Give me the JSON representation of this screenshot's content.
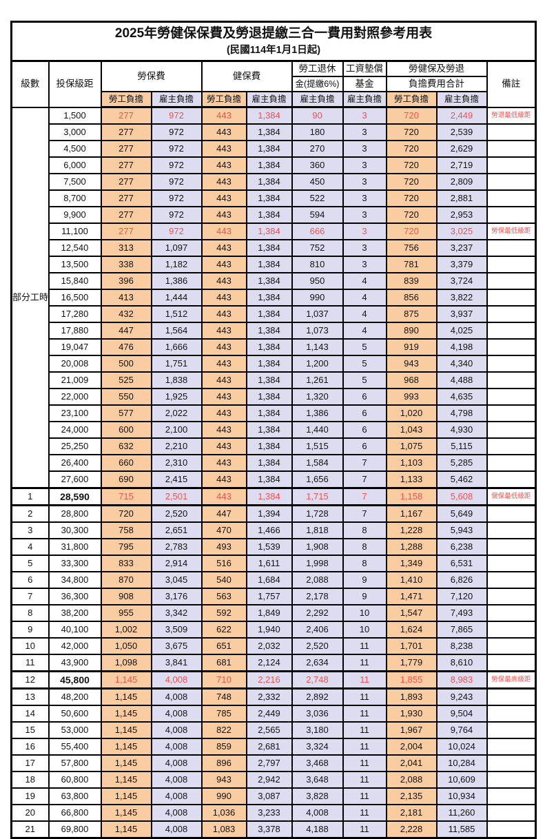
{
  "title": "2025年勞健保保費及勞退提繳三合一費用對照參考用表",
  "subtitle": "(民國114年1月1日起)",
  "colors": {
    "employee_bg": "#F9CCA2",
    "employer_bg": "#DEDCF0",
    "highlight": "#F0534F",
    "border": "#000000"
  },
  "header": {
    "level": "級數",
    "bracket": "投保級距",
    "labor_ins": "勞保費",
    "health_ins": "健保費",
    "pension_l1": "勞工退休",
    "pension_l2": "金(提繳6%)",
    "fund_l1": "工資墊償",
    "fund_l2": "基金",
    "total_l1": "勞健保及勞退",
    "total_l2": "負擔費用合計",
    "remark": "備註",
    "employee_label": "勞工負擔",
    "employer_label": "雇主負擔"
  },
  "group": {
    "label": "部分工時",
    "span": 23
  },
  "rows": [
    {
      "level": "",
      "bracket": "1,500",
      "li_emp": "277",
      "li_er": "972",
      "hi_emp": "443",
      "hi_er": "1,384",
      "pension": "90",
      "fund": "3",
      "tot_emp": "720",
      "tot_er": "2,449",
      "remark": "勞退最低級距",
      "hl": true,
      "bold": false
    },
    {
      "level": "",
      "bracket": "3,000",
      "li_emp": "277",
      "li_er": "972",
      "hi_emp": "443",
      "hi_er": "1,384",
      "pension": "180",
      "fund": "3",
      "tot_emp": "720",
      "tot_er": "2,539",
      "remark": "",
      "hl": false,
      "bold": false
    },
    {
      "level": "",
      "bracket": "4,500",
      "li_emp": "277",
      "li_er": "972",
      "hi_emp": "443",
      "hi_er": "1,384",
      "pension": "270",
      "fund": "3",
      "tot_emp": "720",
      "tot_er": "2,629",
      "remark": "",
      "hl": false,
      "bold": false
    },
    {
      "level": "",
      "bracket": "6,000",
      "li_emp": "277",
      "li_er": "972",
      "hi_emp": "443",
      "hi_er": "1,384",
      "pension": "360",
      "fund": "3",
      "tot_emp": "720",
      "tot_er": "2,719",
      "remark": "",
      "hl": false,
      "bold": false
    },
    {
      "level": "",
      "bracket": "7,500",
      "li_emp": "277",
      "li_er": "972",
      "hi_emp": "443",
      "hi_er": "1,384",
      "pension": "450",
      "fund": "3",
      "tot_emp": "720",
      "tot_er": "2,809",
      "remark": "",
      "hl": false,
      "bold": false
    },
    {
      "level": "",
      "bracket": "8,700",
      "li_emp": "277",
      "li_er": "972",
      "hi_emp": "443",
      "hi_er": "1,384",
      "pension": "522",
      "fund": "3",
      "tot_emp": "720",
      "tot_er": "2,881",
      "remark": "",
      "hl": false,
      "bold": false
    },
    {
      "level": "",
      "bracket": "9,900",
      "li_emp": "277",
      "li_er": "972",
      "hi_emp": "443",
      "hi_er": "1,384",
      "pension": "594",
      "fund": "3",
      "tot_emp": "720",
      "tot_er": "2,953",
      "remark": "",
      "hl": false,
      "bold": false
    },
    {
      "level": "",
      "bracket": "11,100",
      "li_emp": "277",
      "li_er": "972",
      "hi_emp": "443",
      "hi_er": "1,384",
      "pension": "666",
      "fund": "3",
      "tot_emp": "720",
      "tot_er": "3,025",
      "remark": "勞保最低級距",
      "hl": true,
      "bold": false
    },
    {
      "level": "",
      "bracket": "12,540",
      "li_emp": "313",
      "li_er": "1,097",
      "hi_emp": "443",
      "hi_er": "1,384",
      "pension": "752",
      "fund": "3",
      "tot_emp": "756",
      "tot_er": "3,237",
      "remark": "",
      "hl": false,
      "bold": false
    },
    {
      "level": "",
      "bracket": "13,500",
      "li_emp": "338",
      "li_er": "1,182",
      "hi_emp": "443",
      "hi_er": "1,384",
      "pension": "810",
      "fund": "3",
      "tot_emp": "781",
      "tot_er": "3,379",
      "remark": "",
      "hl": false,
      "bold": false
    },
    {
      "level": "",
      "bracket": "15,840",
      "li_emp": "396",
      "li_er": "1,386",
      "hi_emp": "443",
      "hi_er": "1,384",
      "pension": "950",
      "fund": "4",
      "tot_emp": "839",
      "tot_er": "3,724",
      "remark": "",
      "hl": false,
      "bold": false
    },
    {
      "level": "",
      "bracket": "16,500",
      "li_emp": "413",
      "li_er": "1,444",
      "hi_emp": "443",
      "hi_er": "1,384",
      "pension": "990",
      "fund": "4",
      "tot_emp": "856",
      "tot_er": "3,822",
      "remark": "",
      "hl": false,
      "bold": false
    },
    {
      "level": "",
      "bracket": "17,280",
      "li_emp": "432",
      "li_er": "1,512",
      "hi_emp": "443",
      "hi_er": "1,384",
      "pension": "1,037",
      "fund": "4",
      "tot_emp": "875",
      "tot_er": "3,937",
      "remark": "",
      "hl": false,
      "bold": false
    },
    {
      "level": "",
      "bracket": "17,880",
      "li_emp": "447",
      "li_er": "1,564",
      "hi_emp": "443",
      "hi_er": "1,384",
      "pension": "1,073",
      "fund": "4",
      "tot_emp": "890",
      "tot_er": "4,025",
      "remark": "",
      "hl": false,
      "bold": false
    },
    {
      "level": "",
      "bracket": "19,047",
      "li_emp": "476",
      "li_er": "1,666",
      "hi_emp": "443",
      "hi_er": "1,384",
      "pension": "1,143",
      "fund": "5",
      "tot_emp": "919",
      "tot_er": "4,198",
      "remark": "",
      "hl": false,
      "bold": false
    },
    {
      "level": "",
      "bracket": "20,008",
      "li_emp": "500",
      "li_er": "1,751",
      "hi_emp": "443",
      "hi_er": "1,384",
      "pension": "1,200",
      "fund": "5",
      "tot_emp": "943",
      "tot_er": "4,340",
      "remark": "",
      "hl": false,
      "bold": false
    },
    {
      "level": "",
      "bracket": "21,009",
      "li_emp": "525",
      "li_er": "1,838",
      "hi_emp": "443",
      "hi_er": "1,384",
      "pension": "1,261",
      "fund": "5",
      "tot_emp": "968",
      "tot_er": "4,488",
      "remark": "",
      "hl": false,
      "bold": false
    },
    {
      "level": "",
      "bracket": "22,000",
      "li_emp": "550",
      "li_er": "1,925",
      "hi_emp": "443",
      "hi_er": "1,384",
      "pension": "1,320",
      "fund": "6",
      "tot_emp": "993",
      "tot_er": "4,635",
      "remark": "",
      "hl": false,
      "bold": false
    },
    {
      "level": "",
      "bracket": "23,100",
      "li_emp": "577",
      "li_er": "2,022",
      "hi_emp": "443",
      "hi_er": "1,384",
      "pension": "1,386",
      "fund": "6",
      "tot_emp": "1,020",
      "tot_er": "4,798",
      "remark": "",
      "hl": false,
      "bold": false
    },
    {
      "level": "",
      "bracket": "24,000",
      "li_emp": "600",
      "li_er": "2,100",
      "hi_emp": "443",
      "hi_er": "1,384",
      "pension": "1,440",
      "fund": "6",
      "tot_emp": "1,043",
      "tot_er": "4,930",
      "remark": "",
      "hl": false,
      "bold": false
    },
    {
      "level": "",
      "bracket": "25,250",
      "li_emp": "632",
      "li_er": "2,210",
      "hi_emp": "443",
      "hi_er": "1,384",
      "pension": "1,515",
      "fund": "6",
      "tot_emp": "1,075",
      "tot_er": "5,115",
      "remark": "",
      "hl": false,
      "bold": false
    },
    {
      "level": "",
      "bracket": "26,400",
      "li_emp": "660",
      "li_er": "2,310",
      "hi_emp": "443",
      "hi_er": "1,384",
      "pension": "1,584",
      "fund": "7",
      "tot_emp": "1,103",
      "tot_er": "5,285",
      "remark": "",
      "hl": false,
      "bold": false
    },
    {
      "level": "",
      "bracket": "27,600",
      "li_emp": "690",
      "li_er": "2,415",
      "hi_emp": "443",
      "hi_er": "1,384",
      "pension": "1,656",
      "fund": "7",
      "tot_emp": "1,133",
      "tot_er": "5,462",
      "remark": "",
      "hl": false,
      "bold": false
    },
    {
      "level": "1",
      "bracket": "28,590",
      "li_emp": "715",
      "li_er": "2,501",
      "hi_emp": "443",
      "hi_er": "1,384",
      "pension": "1,715",
      "fund": "7",
      "tot_emp": "1,158",
      "tot_er": "5,608",
      "remark": "健保最低級距",
      "hl": true,
      "bold": true
    },
    {
      "level": "2",
      "bracket": "28,800",
      "li_emp": "720",
      "li_er": "2,520",
      "hi_emp": "447",
      "hi_er": "1,394",
      "pension": "1,728",
      "fund": "7",
      "tot_emp": "1,167",
      "tot_er": "5,649",
      "remark": "",
      "hl": false,
      "bold": false
    },
    {
      "level": "3",
      "bracket": "30,300",
      "li_emp": "758",
      "li_er": "2,651",
      "hi_emp": "470",
      "hi_er": "1,466",
      "pension": "1,818",
      "fund": "8",
      "tot_emp": "1,228",
      "tot_er": "5,943",
      "remark": "",
      "hl": false,
      "bold": false
    },
    {
      "level": "4",
      "bracket": "31,800",
      "li_emp": "795",
      "li_er": "2,783",
      "hi_emp": "493",
      "hi_er": "1,539",
      "pension": "1,908",
      "fund": "8",
      "tot_emp": "1,288",
      "tot_er": "6,238",
      "remark": "",
      "hl": false,
      "bold": false
    },
    {
      "level": "5",
      "bracket": "33,300",
      "li_emp": "833",
      "li_er": "2,914",
      "hi_emp": "516",
      "hi_er": "1,611",
      "pension": "1,998",
      "fund": "8",
      "tot_emp": "1,349",
      "tot_er": "6,531",
      "remark": "",
      "hl": false,
      "bold": false
    },
    {
      "level": "6",
      "bracket": "34,800",
      "li_emp": "870",
      "li_er": "3,045",
      "hi_emp": "540",
      "hi_er": "1,684",
      "pension": "2,088",
      "fund": "9",
      "tot_emp": "1,410",
      "tot_er": "6,826",
      "remark": "",
      "hl": false,
      "bold": false
    },
    {
      "level": "7",
      "bracket": "36,300",
      "li_emp": "908",
      "li_er": "3,176",
      "hi_emp": "563",
      "hi_er": "1,757",
      "pension": "2,178",
      "fund": "9",
      "tot_emp": "1,471",
      "tot_er": "7,120",
      "remark": "",
      "hl": false,
      "bold": false
    },
    {
      "level": "8",
      "bracket": "38,200",
      "li_emp": "955",
      "li_er": "3,342",
      "hi_emp": "592",
      "hi_er": "1,849",
      "pension": "2,292",
      "fund": "10",
      "tot_emp": "1,547",
      "tot_er": "7,493",
      "remark": "",
      "hl": false,
      "bold": false
    },
    {
      "level": "9",
      "bracket": "40,100",
      "li_emp": "1,002",
      "li_er": "3,509",
      "hi_emp": "622",
      "hi_er": "1,940",
      "pension": "2,406",
      "fund": "10",
      "tot_emp": "1,624",
      "tot_er": "7,865",
      "remark": "",
      "hl": false,
      "bold": false
    },
    {
      "level": "10",
      "bracket": "42,000",
      "li_emp": "1,050",
      "li_er": "3,675",
      "hi_emp": "651",
      "hi_er": "2,032",
      "pension": "2,520",
      "fund": "11",
      "tot_emp": "1,701",
      "tot_er": "8,238",
      "remark": "",
      "hl": false,
      "bold": false
    },
    {
      "level": "11",
      "bracket": "43,900",
      "li_emp": "1,098",
      "li_er": "3,841",
      "hi_emp": "681",
      "hi_er": "2,124",
      "pension": "2,634",
      "fund": "11",
      "tot_emp": "1,779",
      "tot_er": "8,610",
      "remark": "",
      "hl": false,
      "bold": false
    },
    {
      "level": "12",
      "bracket": "45,800",
      "li_emp": "1,145",
      "li_er": "4,008",
      "hi_emp": "710",
      "hi_er": "2,216",
      "pension": "2,748",
      "fund": "11",
      "tot_emp": "1,855",
      "tot_er": "8,983",
      "remark": "勞保最高級距",
      "hl": true,
      "bold": true
    },
    {
      "level": "13",
      "bracket": "48,200",
      "li_emp": "1,145",
      "li_er": "4,008",
      "hi_emp": "748",
      "hi_er": "2,332",
      "pension": "2,892",
      "fund": "11",
      "tot_emp": "1,893",
      "tot_er": "9,243",
      "remark": "",
      "hl": false,
      "bold": false
    },
    {
      "level": "14",
      "bracket": "50,600",
      "li_emp": "1,145",
      "li_er": "4,008",
      "hi_emp": "785",
      "hi_er": "2,449",
      "pension": "3,036",
      "fund": "11",
      "tot_emp": "1,930",
      "tot_er": "9,504",
      "remark": "",
      "hl": false,
      "bold": false
    },
    {
      "level": "15",
      "bracket": "53,000",
      "li_emp": "1,145",
      "li_er": "4,008",
      "hi_emp": "822",
      "hi_er": "2,565",
      "pension": "3,180",
      "fund": "11",
      "tot_emp": "1,967",
      "tot_er": "9,764",
      "remark": "",
      "hl": false,
      "bold": false
    },
    {
      "level": "16",
      "bracket": "55,400",
      "li_emp": "1,145",
      "li_er": "4,008",
      "hi_emp": "859",
      "hi_er": "2,681",
      "pension": "3,324",
      "fund": "11",
      "tot_emp": "2,004",
      "tot_er": "10,024",
      "remark": "",
      "hl": false,
      "bold": false
    },
    {
      "level": "17",
      "bracket": "57,800",
      "li_emp": "1,145",
      "li_er": "4,008",
      "hi_emp": "896",
      "hi_er": "2,797",
      "pension": "3,468",
      "fund": "11",
      "tot_emp": "2,041",
      "tot_er": "10,284",
      "remark": "",
      "hl": false,
      "bold": false
    },
    {
      "level": "18",
      "bracket": "60,800",
      "li_emp": "1,145",
      "li_er": "4,008",
      "hi_emp": "943",
      "hi_er": "2,942",
      "pension": "3,648",
      "fund": "11",
      "tot_emp": "2,088",
      "tot_er": "10,609",
      "remark": "",
      "hl": false,
      "bold": false
    },
    {
      "level": "19",
      "bracket": "63,800",
      "li_emp": "1,145",
      "li_er": "4,008",
      "hi_emp": "990",
      "hi_er": "3,087",
      "pension": "3,828",
      "fund": "11",
      "tot_emp": "2,135",
      "tot_er": "10,934",
      "remark": "",
      "hl": false,
      "bold": false
    },
    {
      "level": "20",
      "bracket": "66,800",
      "li_emp": "1,145",
      "li_er": "4,008",
      "hi_emp": "1,036",
      "hi_er": "3,233",
      "pension": "4,008",
      "fund": "11",
      "tot_emp": "2,181",
      "tot_er": "11,260",
      "remark": "",
      "hl": false,
      "bold": false
    },
    {
      "level": "21",
      "bracket": "69,800",
      "li_emp": "1,145",
      "li_er": "4,008",
      "hi_emp": "1,083",
      "hi_er": "3,378",
      "pension": "4,188",
      "fund": "11",
      "tot_emp": "2,228",
      "tot_er": "11,585",
      "remark": "",
      "hl": false,
      "bold": false
    }
  ]
}
